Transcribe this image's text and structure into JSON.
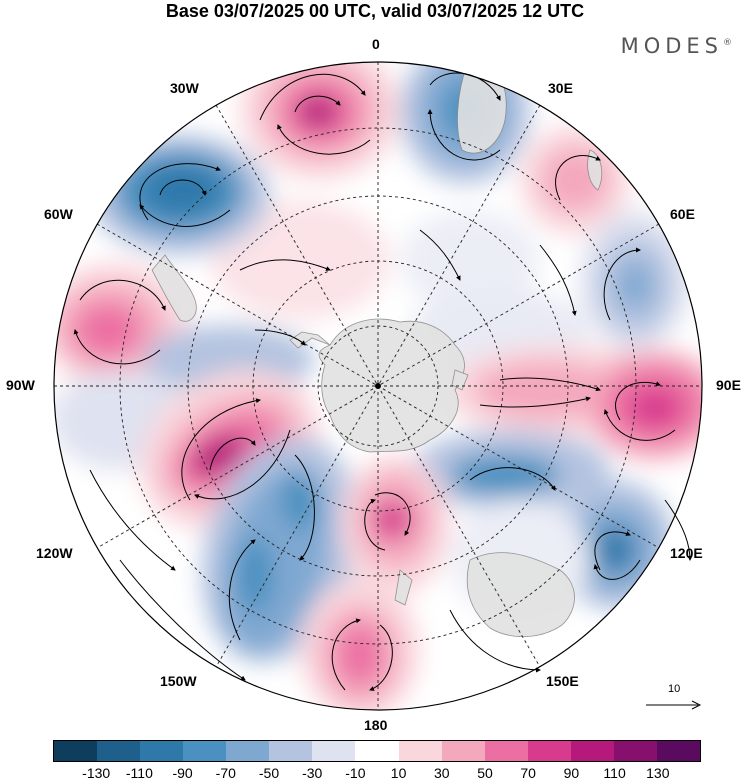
{
  "title": "Base 03/07/2025 00 UTC, valid 03/07/2025 12 UTC",
  "brand": "MODES",
  "brand_mark": "®",
  "longitude_labels": {
    "lon_0": "0",
    "lon_30e": "30E",
    "lon_60e": "60E",
    "lon_90e": "90E",
    "lon_120e": "120E",
    "lon_150e": "150E",
    "lon_180": "180",
    "lon_150w": "150W",
    "lon_120w": "120W",
    "lon_90w": "90W",
    "lon_60w": "60W",
    "lon_30w": "30W"
  },
  "reference_vector": {
    "value": "10"
  },
  "colorbar": {
    "ticks": [
      "-130",
      "-110",
      "-90",
      "-70",
      "-50",
      "-30",
      "-10",
      "10",
      "30",
      "50",
      "70",
      "90",
      "110",
      "130"
    ],
    "colors": [
      "#0f3d5e",
      "#1f5f8b",
      "#2e78aa",
      "#4a90c0",
      "#7fa8d1",
      "#b3c3e0",
      "#dfe2f0",
      "#ffffff",
      "#f9d7dd",
      "#f4a8bd",
      "#ec6fa3",
      "#d83b8e",
      "#b4197b",
      "#87106e",
      "#5b0b5f"
    ],
    "colors_note_low": "#0a2a44",
    "colors_note_high": "#3e0a4e"
  },
  "colors": {
    "land": "#e2e2e2",
    "coast": "#888888",
    "graticule": "#222222",
    "arrow": "#000000"
  }
}
